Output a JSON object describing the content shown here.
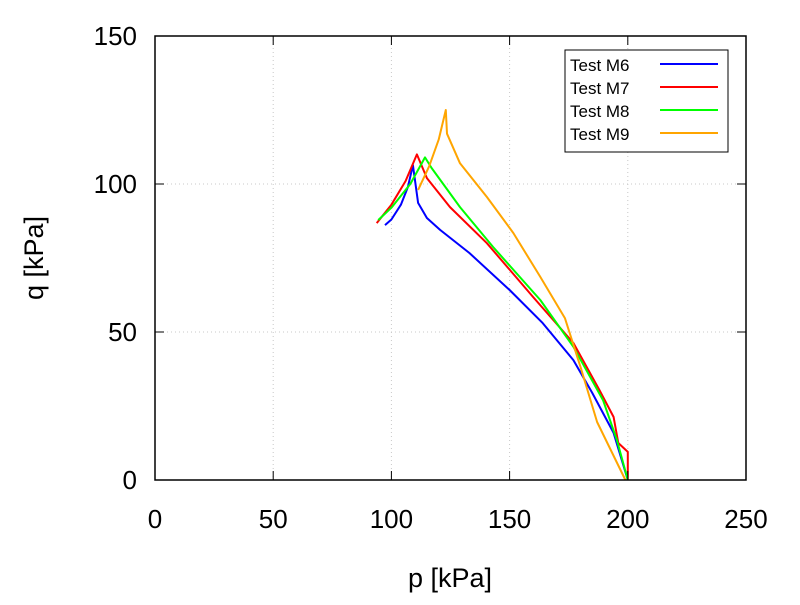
{
  "chart_data": {
    "type": "line",
    "title": "",
    "xlabel": "p [kPa]",
    "ylabel": "q [kPa]",
    "xlim": [
      0,
      250
    ],
    "ylim": [
      0,
      150
    ],
    "xticks": [
      0,
      50,
      100,
      150,
      200,
      250
    ],
    "yticks": [
      0,
      50,
      100,
      150
    ],
    "grid": true,
    "legend_position": "top-right",
    "series": [
      {
        "name": "Test M6",
        "color": "#0000ff",
        "x": [
          97.3,
          100,
          104,
          107,
          109.1,
          111.3,
          115,
          120.6,
          133,
          150,
          164,
          177,
          185,
          194,
          200
        ],
        "y": [
          86.1,
          88,
          93,
          99,
          106.4,
          93.6,
          88.5,
          84.5,
          76.7,
          64.2,
          53,
          40.5,
          29.4,
          15.9,
          0
        ]
      },
      {
        "name": "Test M7",
        "color": "#ff0000",
        "x": [
          93.8,
          100,
          106,
          110.8,
          115,
          124.8,
          140.4,
          160,
          177,
          188,
          194,
          196,
          200,
          200
        ],
        "y": [
          86.8,
          93,
          101,
          110,
          102,
          92.2,
          80,
          61.8,
          46.3,
          30.4,
          21.3,
          12.5,
          9.5,
          0
        ]
      },
      {
        "name": "Test M8",
        "color": "#00ff00",
        "x": [
          94.4,
          100,
          108,
          114.2,
          117,
          129,
          143,
          163,
          177,
          189.5,
          195.4,
          200
        ],
        "y": [
          87.8,
          92,
          100,
          109,
          105.4,
          92.2,
          78.7,
          60.8,
          45,
          27,
          13.5,
          0
        ]
      },
      {
        "name": "Test M9",
        "color": "#ffa500",
        "x": [
          111.3,
          116,
          120,
          123,
          123.5,
          129,
          140.4,
          151.6,
          163,
          173.4,
          180,
          187,
          199
        ],
        "y": [
          98,
          106,
          115,
          125,
          117,
          107,
          95.6,
          83.4,
          68.6,
          54.7,
          38.2,
          19.6,
          0
        ]
      }
    ]
  }
}
